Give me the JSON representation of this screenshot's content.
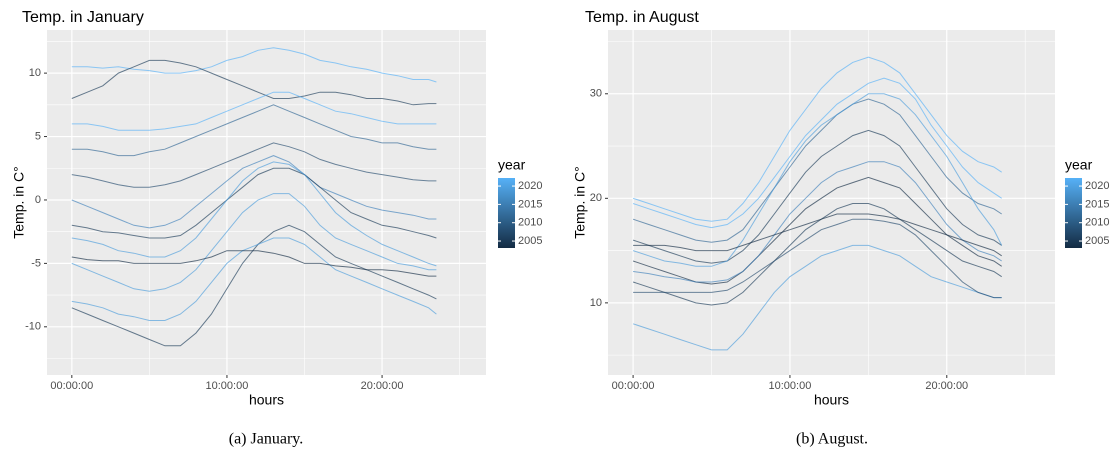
{
  "chart_data": [
    {
      "type": "line",
      "title": "Temp. in January",
      "xlabel": "hours",
      "ylabel": "Temp. in C°",
      "caption": "(a) January.",
      "x": [
        0,
        1,
        2,
        3,
        4,
        5,
        6,
        7,
        8,
        9,
        10,
        11,
        12,
        13,
        14,
        15,
        16,
        17,
        18,
        19,
        20,
        21,
        22,
        23,
        23.5
      ],
      "xlim": [
        -1.6,
        26.7
      ],
      "xticks": [
        {
          "value": 0,
          "label": "00:00:00"
        },
        {
          "value": 10,
          "label": "10:00:00"
        },
        {
          "value": 20,
          "label": "20:00:00"
        }
      ],
      "xminor": [
        5,
        15,
        25
      ],
      "ylim": [
        -13.8,
        13.4
      ],
      "yticks": [
        -10,
        -5,
        0,
        5,
        10
      ],
      "yminor": [
        -12.5,
        -7.5,
        -2.5,
        2.5,
        7.5,
        12.5
      ],
      "grid": true,
      "alpha": 0.65,
      "legend": {
        "title": "year",
        "ticks": [
          2005,
          2010,
          2015,
          2020
        ],
        "limits": [
          2003.1,
          2022.2
        ],
        "colors": [
          "#132B43",
          "#56B1F7"
        ],
        "position": "right"
      },
      "series": [
        {
          "color": "#56B1F7",
          "values": [
            10.5,
            10.5,
            10.4,
            10.5,
            10.3,
            10.2,
            10,
            10,
            10.2,
            10.5,
            11,
            11.3,
            11.8,
            12,
            11.8,
            11.5,
            11,
            10.8,
            10.5,
            10.3,
            10,
            9.8,
            9.5,
            9.5,
            9.3
          ]
        },
        {
          "color": "#1A3A58",
          "values": [
            8,
            8.5,
            9,
            10,
            10.5,
            11,
            11,
            10.8,
            10.5,
            10,
            9.5,
            9,
            8.5,
            8,
            8,
            8.2,
            8.5,
            8.5,
            8.3,
            8,
            8,
            7.8,
            7.5,
            7.6,
            7.6
          ]
        },
        {
          "color": "#2F6594",
          "values": [
            4,
            4,
            3.8,
            3.5,
            3.5,
            3.8,
            4,
            4.5,
            5,
            5.5,
            6,
            6.5,
            7,
            7.5,
            7,
            6.5,
            6,
            5.5,
            5,
            4.8,
            4.5,
            4.5,
            4.2,
            4,
            4
          ]
        },
        {
          "color": "#23496D",
          "values": [
            2,
            1.8,
            1.5,
            1.2,
            1,
            1,
            1.2,
            1.5,
            2,
            2.5,
            3,
            3.5,
            4,
            4.5,
            4.2,
            3.8,
            3.2,
            2.8,
            2.5,
            2.2,
            2,
            1.8,
            1.6,
            1.5,
            1.5
          ]
        },
        {
          "color": "#3D80BA",
          "values": [
            0,
            -0.5,
            -1,
            -1.5,
            -2,
            -2.2,
            -2,
            -1.5,
            -0.5,
            0.5,
            1.5,
            2.5,
            3,
            3.5,
            3,
            2,
            1,
            0.5,
            0,
            -0.5,
            -0.8,
            -1,
            -1.2,
            -1.5,
            -1.5
          ]
        },
        {
          "color": "#1A3A58",
          "values": [
            -2,
            -2.2,
            -2.5,
            -2.6,
            -2.8,
            -3,
            -3,
            -2.8,
            -2,
            -1,
            0,
            1,
            2,
            2.5,
            2.5,
            2,
            1,
            0,
            -1,
            -1.5,
            -2,
            -2.2,
            -2.5,
            -2.8,
            -3
          ]
        },
        {
          "color": "#4C9DDC",
          "values": [
            -5,
            -5.5,
            -6,
            -6.5,
            -7,
            -7.2,
            -7,
            -6.5,
            -5.5,
            -4,
            -2.5,
            -1,
            0,
            0.5,
            0.5,
            -0.5,
            -2,
            -3,
            -3.5,
            -4,
            -4.5,
            -5,
            -5.2,
            -5.5,
            -5.5
          ]
        },
        {
          "color": "#1A3A58",
          "values": [
            -8.5,
            -9,
            -9.5,
            -10,
            -10.5,
            -11,
            -11.5,
            -11.5,
            -10.5,
            -9,
            -7,
            -5,
            -3.5,
            -2.5,
            -2,
            -2.5,
            -3.5,
            -4.5,
            -5,
            -5.5,
            -6,
            -6.5,
            -7,
            -7.5,
            -7.8
          ]
        },
        {
          "color": "#4C9DDC",
          "values": [
            -8,
            -8.2,
            -8.5,
            -9,
            -9.2,
            -9.5,
            -9.5,
            -9,
            -8,
            -6.5,
            -5,
            -4,
            -3.5,
            -3,
            -3,
            -3.5,
            -4.5,
            -5.5,
            -6,
            -6.5,
            -7,
            -7.5,
            -8,
            -8.5,
            -9
          ]
        },
        {
          "color": "#132B43",
          "values": [
            -4.5,
            -4.7,
            -4.8,
            -4.8,
            -5,
            -5,
            -5,
            -5,
            -4.8,
            -4.5,
            -4,
            -4,
            -4,
            -4.2,
            -4.5,
            -5,
            -5,
            -5.2,
            -5.3,
            -5.5,
            -5.5,
            -5.6,
            -5.8,
            -6,
            -6
          ]
        },
        {
          "color": "#56B1F7",
          "values": [
            6,
            6,
            5.8,
            5.5,
            5.5,
            5.5,
            5.6,
            5.8,
            6,
            6.5,
            7,
            7.5,
            8,
            8.5,
            8.5,
            8,
            7.5,
            7,
            6.8,
            6.5,
            6.2,
            6,
            6,
            6,
            6
          ]
        },
        {
          "color": "#4C9DDC",
          "values": [
            -3,
            -3.2,
            -3.5,
            -4,
            -4.2,
            -4.5,
            -4.5,
            -4,
            -3,
            -1.5,
            0,
            1.5,
            2.5,
            3,
            2.8,
            2,
            0.5,
            -1,
            -2,
            -2.8,
            -3.5,
            -4,
            -4.5,
            -5,
            -5.2
          ]
        }
      ]
    },
    {
      "type": "line",
      "title": "Temp. in August",
      "xlabel": "hours",
      "ylabel": "Temp. in C°",
      "caption": "(b) August.",
      "x": [
        0,
        1,
        2,
        3,
        4,
        5,
        6,
        7,
        8,
        9,
        10,
        11,
        12,
        13,
        14,
        15,
        16,
        17,
        18,
        19,
        20,
        21,
        22,
        23,
        23.5
      ],
      "xlim": [
        -1.6,
        26.9
      ],
      "xticks": [
        {
          "value": 0,
          "label": "00:00:00"
        },
        {
          "value": 10,
          "label": "10:00:00"
        },
        {
          "value": 20,
          "label": "20:00:00"
        }
      ],
      "xminor": [
        5,
        15,
        25
      ],
      "ylim": [
        3.1,
        36.1
      ],
      "yticks": [
        10,
        20,
        30
      ],
      "yminor": [
        5,
        15,
        25,
        35
      ],
      "grid": true,
      "alpha": 0.65,
      "legend": {
        "title": "year",
        "ticks": [
          2005,
          2010,
          2015,
          2020
        ],
        "limits": [
          2003.1,
          2022.2
        ],
        "colors": [
          "#132B43",
          "#56B1F7"
        ],
        "position": "right"
      },
      "series": [
        {
          "color": "#56B1F7",
          "values": [
            20,
            19.5,
            19,
            18.5,
            18,
            17.8,
            18,
            19.5,
            21.5,
            24,
            26.5,
            28.5,
            30.5,
            32,
            33,
            33.5,
            33,
            32,
            30,
            28,
            26,
            24.5,
            23.5,
            23,
            22.5
          ]
        },
        {
          "color": "#2F6594",
          "values": [
            18,
            17.5,
            17,
            16.5,
            16,
            15.8,
            16,
            17,
            19,
            21,
            23,
            25,
            26.5,
            28,
            29,
            29.5,
            29,
            28,
            26,
            24,
            22,
            20.5,
            19.5,
            19,
            18.5
          ]
        },
        {
          "color": "#1A3A58",
          "values": [
            16,
            15.5,
            15,
            14.5,
            14,
            13.8,
            14,
            15,
            16.5,
            18.5,
            20.5,
            22.5,
            24,
            25,
            26,
            26.5,
            26,
            25,
            23,
            21,
            19,
            17.5,
            16.5,
            16,
            15.5
          ]
        },
        {
          "color": "#132B43",
          "values": [
            14,
            13.5,
            13,
            12.5,
            12,
            11.8,
            12,
            13,
            14.5,
            16,
            17.5,
            19,
            20,
            21,
            21.5,
            22,
            21.5,
            21,
            19.5,
            18,
            16.5,
            15.5,
            14.5,
            14,
            13.5
          ]
        },
        {
          "color": "#1A3A58",
          "values": [
            12,
            11.5,
            11,
            10.5,
            10,
            9.8,
            10,
            11,
            12.5,
            14,
            15.5,
            17,
            18,
            19,
            19.5,
            19.5,
            19,
            18,
            17,
            16,
            15,
            14,
            13.5,
            13,
            12.5
          ]
        },
        {
          "color": "#4C9DDC",
          "values": [
            8,
            7.5,
            7,
            6.5,
            6,
            5.5,
            5.5,
            7,
            9,
            11,
            12.5,
            13.5,
            14.5,
            15,
            15.5,
            15.5,
            15,
            14.5,
            13.5,
            12.5,
            12,
            11.5,
            11,
            10.5,
            10.5
          ]
        },
        {
          "color": "#23496D",
          "values": [
            11,
            11,
            11,
            11,
            11,
            11,
            11.2,
            12,
            13,
            14,
            15,
            16,
            17,
            17.5,
            18,
            18,
            17.8,
            17.5,
            16.5,
            15,
            13.5,
            12,
            11,
            10.5,
            10.5
          ]
        },
        {
          "color": "#4C9DDC",
          "values": [
            15,
            14.5,
            14,
            13.8,
            13.5,
            13.5,
            14,
            16,
            18.5,
            21,
            23.5,
            25.5,
            27,
            28,
            29,
            30,
            30,
            29.5,
            28,
            26,
            24,
            21.5,
            19,
            17,
            15.5
          ]
        },
        {
          "color": "#3D80BA",
          "values": [
            13,
            12.8,
            12.5,
            12.3,
            12,
            12,
            12.2,
            13,
            14.5,
            16.5,
            18.5,
            20,
            21.5,
            22.5,
            23,
            23.5,
            23.5,
            23,
            21.5,
            19.5,
            17.5,
            16,
            15,
            14.5,
            14
          ]
        },
        {
          "color": "#56B1F7",
          "values": [
            19.5,
            19,
            18.5,
            18,
            17.5,
            17.2,
            17.5,
            18.5,
            20,
            22,
            24,
            26,
            27.5,
            29,
            30,
            31,
            31.5,
            31,
            29.5,
            27,
            25,
            23,
            21.5,
            20.5,
            20
          ]
        },
        {
          "color": "#132B43",
          "values": [
            15.5,
            15.5,
            15.5,
            15.3,
            15,
            15,
            15,
            15.5,
            16,
            16.5,
            17,
            17.5,
            18,
            18.5,
            18.5,
            18.5,
            18.3,
            18,
            17.5,
            17,
            16.5,
            16,
            15.5,
            15,
            14.5
          ]
        }
      ]
    }
  ]
}
